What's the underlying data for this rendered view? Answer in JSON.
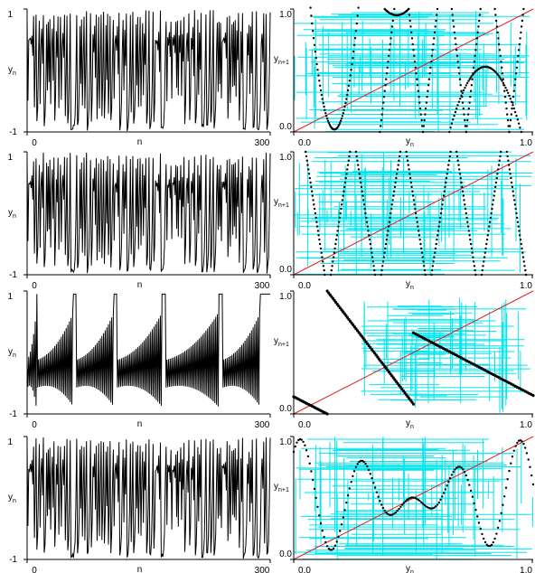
{
  "colors": {
    "series": "#000000",
    "cobweb": "#00e5ee",
    "diagonal": "#e02020",
    "axis": "#000000"
  },
  "time_axis_labels": {
    "y_top": "1",
    "y_bottom": "-1",
    "x_left": "0",
    "x_right": "300",
    "xlabel": "n",
    "ylabel": "y",
    "ylabel_sub": "n"
  },
  "map_axis_labels": {
    "y_top": "1.0",
    "y_bottom": "0.0",
    "x_left": "0.0",
    "x_right": "1.0",
    "xlabel": "y",
    "xlabel_sub": "n",
    "ylabel": "y",
    "ylabel_sub": "n+1"
  },
  "chart_data": [
    {
      "type": "line",
      "panel": "row1-left",
      "x_range": [
        0,
        300
      ],
      "ylim": [
        -1,
        1
      ],
      "xlabel": "n",
      "ylabel": "y_n",
      "note_values": "chaotic series, 300 points"
    },
    {
      "type": "scatter",
      "panel": "row1-right",
      "xlim": [
        0,
        1
      ],
      "ylim": [
        0,
        1
      ],
      "xlabel": "y_n",
      "ylabel": "y_n+1",
      "map_branches": [
        [
          0.07,
          0.27
        ],
        [
          0.33,
          0.48
        ],
        [
          0.65,
          0.95
        ]
      ],
      "diagonal": true,
      "cobweb": true
    },
    {
      "type": "line",
      "panel": "row2-left",
      "x_range": [
        0,
        300
      ],
      "ylim": [
        -1,
        1
      ],
      "xlabel": "n",
      "ylabel": "y_n"
    },
    {
      "type": "scatter",
      "panel": "row2-right",
      "xlim": [
        0,
        1
      ],
      "ylim": [
        0,
        1
      ],
      "xlabel": "y_n",
      "ylabel": "y_n+1",
      "map_teeth": 9,
      "diagonal": true,
      "cobweb": true
    },
    {
      "type": "line",
      "panel": "row3-left",
      "x_range": [
        0,
        300
      ],
      "ylim": [
        -1,
        1
      ],
      "xlabel": "n",
      "ylabel": "y_n"
    },
    {
      "type": "scatter",
      "panel": "row3-right",
      "xlim": [
        0,
        1
      ],
      "ylim": [
        0,
        1
      ],
      "xlabel": "y_n",
      "ylabel": "y_n+1",
      "map_segments": [
        {
          "x": [
            0.0,
            0.14
          ],
          "y": [
            0.14,
            0.0
          ]
        },
        {
          "x": [
            0.14,
            0.5
          ],
          "y": [
            1.0,
            0.08
          ]
        },
        {
          "x": [
            0.5,
            1.0
          ],
          "y": [
            0.66,
            0.15
          ]
        }
      ],
      "diagonal": true,
      "cobweb": true
    },
    {
      "type": "line",
      "panel": "row4-left",
      "x_range": [
        0,
        300
      ],
      "ylim": [
        -1,
        1
      ],
      "xlabel": "n",
      "ylabel": "y_n"
    },
    {
      "type": "scatter",
      "panel": "row4-right",
      "xlim": [
        0,
        1
      ],
      "ylim": [
        0,
        1
      ],
      "xlabel": "y_n",
      "ylabel": "y_n+1",
      "map_oscillation": "wavy curve with 7 extrema",
      "diagonal": true,
      "cobweb": true
    }
  ]
}
